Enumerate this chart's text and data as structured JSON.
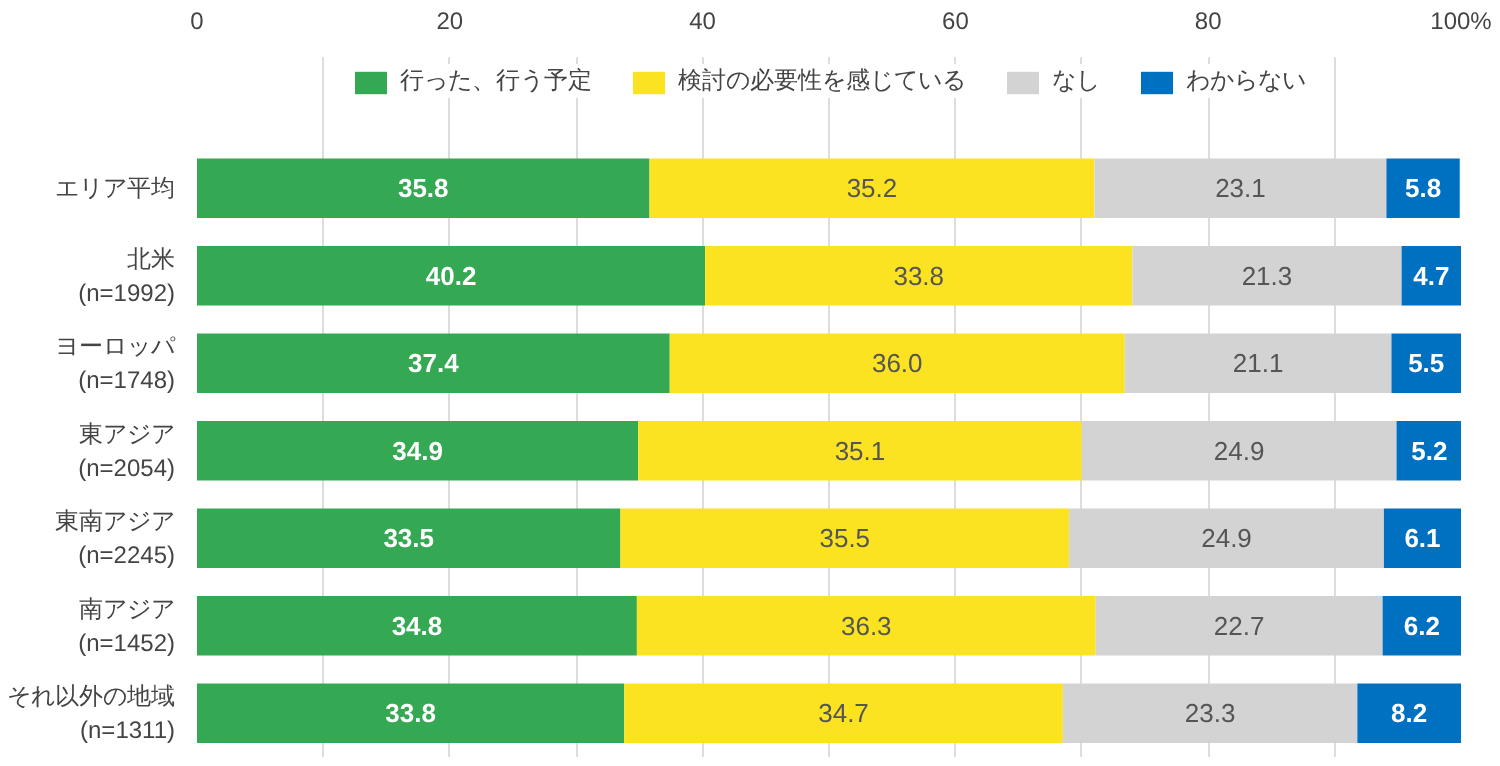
{
  "chart_data": {
    "type": "bar",
    "orientation": "horizontal",
    "stacked": true,
    "grid": "x",
    "legend": "top",
    "tick_labels": "x",
    "categories": [
      "エリア平均",
      "北米\n(n=1992)",
      "ヨーロッパ\n(n=1748)",
      "東アジア\n(n=2054)",
      "東南アジア\n(n=2245)",
      "南アジア\n(n=1452)",
      "それ以外の地域\n(n=1311)"
    ],
    "xlim": [
      0,
      100
    ],
    "xticks": [
      0,
      {
        "value": 10,
        "label": null
      },
      20,
      {
        "value": 30,
        "label": null
      },
      40,
      {
        "value": 50,
        "label": null
      },
      60,
      {
        "value": 70,
        "label": null
      },
      80,
      {
        "value": 90,
        "label": null
      },
      {
        "value": 100,
        "label": "100%"
      }
    ],
    "series": [
      {
        "name": "行った、行う予定",
        "color": "#34a853",
        "values": [
          35.8,
          40.2,
          37.4,
          34.9,
          33.5,
          34.8,
          33.8
        ],
        "value_labels": [
          "35.8",
          "40.2",
          "37.4",
          "34.9",
          "33.5",
          "34.8",
          "33.8"
        ]
      },
      {
        "name": "検討の必要性を感じている",
        "color": "#fce322",
        "values": [
          35.2,
          33.8,
          36.0,
          35.1,
          35.5,
          36.3,
          34.7
        ],
        "value_labels": [
          "35.2",
          "33.8",
          "36.0",
          "35.1",
          "35.5",
          "36.3",
          "34.7"
        ]
      },
      {
        "name": "なし",
        "color": "#d3d3d3",
        "values": [
          23.1,
          21.3,
          21.1,
          24.9,
          24.9,
          22.7,
          23.3
        ],
        "value_labels": [
          "23.1",
          "21.3",
          "21.1",
          "24.9",
          "24.9",
          "22.7",
          "23.3"
        ]
      },
      {
        "name": "わからない",
        "color": "#0070c0",
        "values": [
          5.8,
          4.7,
          5.5,
          5.2,
          6.1,
          6.2,
          8.2
        ],
        "value_labels": [
          "5.8",
          "4.7",
          "5.5",
          "5.2",
          "6.1",
          "6.2",
          "8.2"
        ]
      }
    ]
  }
}
